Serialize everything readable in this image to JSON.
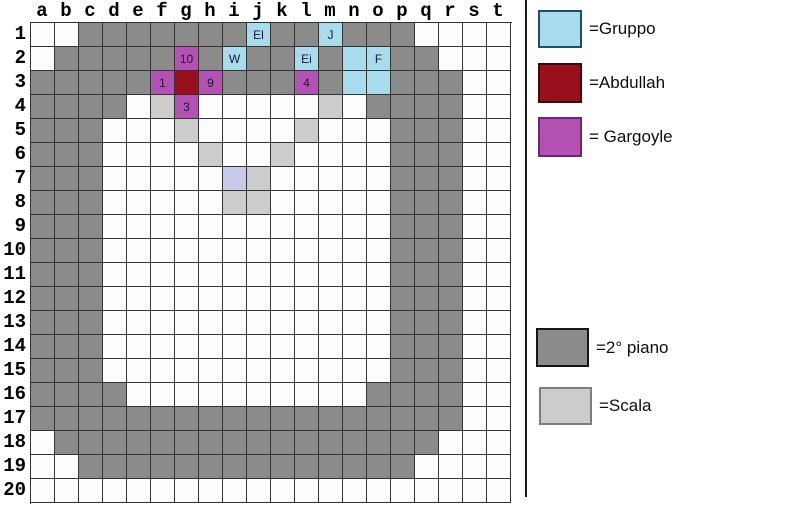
{
  "colors": {
    "G": "#8b8b8b",
    "S": "#cccccc",
    "C": "#a8dcec",
    "P": "#b452b4",
    "R": "#9a0f1e",
    "L": "#c9c9ec",
    "W": "#fdfdfd"
  },
  "grid": {
    "columns": [
      "a",
      "b",
      "c",
      "d",
      "e",
      "f",
      "g",
      "h",
      "i",
      "j",
      "k",
      "l",
      "m",
      "n",
      "o",
      "p",
      "q",
      "r",
      "s",
      "t"
    ],
    "rows": [
      "1",
      "2",
      "3",
      "4",
      "5",
      "6",
      "7",
      "8",
      "9",
      "10",
      "11",
      "12",
      "13",
      "14",
      "15",
      "16",
      "17",
      "18",
      "19",
      "20"
    ],
    "cells": [
      "WWGGGGGGGCGGCGGGWWWW",
      "WGGGGGPGCGGCGCCGGWWW",
      "GGGGGPRPGGGPGCCGGGWW",
      "GGGGWSPWWWWWSWGGGGWW",
      "GGGWWWSWWWWSWWWGGGWW",
      "GGGWWWWSWWSWWWWGGGWW",
      "GGGWWWWWLSWWWWWGGGWW",
      "GGGWWWWWSSWWWWWGGGWW",
      "GGGWWWWWWWWWWWWGGGWW",
      "GGGWWWWWWWWWWWWGGGWW",
      "GGGWWWWWWWWWWWWGGGWW",
      "GGGWWWWWWWWWWWWGGGWW",
      "GGGWWWWWWWWWWWWGGGWW",
      "GGGWWWWWWWWWWWWGGGWW",
      "GGGWWWWWWWWWWWWGGGWW",
      "GGGGWWWWWWWWWWGGGGWW",
      "GGGGGGGGGGGGGGGGGGWW",
      "WGGGGGGGGGGGGGGGGWWW",
      "WWGGGGGGGGGGGGGGWWWW",
      "WWWWWWWWWWWWWWWWWWWW"
    ],
    "labels": [
      {
        "cell": "j1",
        "text": "El"
      },
      {
        "cell": "m1",
        "text": "J"
      },
      {
        "cell": "g2",
        "text": "10"
      },
      {
        "cell": "i2",
        "text": "W"
      },
      {
        "cell": "l2",
        "text": "Ei"
      },
      {
        "cell": "o2",
        "text": "F"
      },
      {
        "cell": "f3",
        "text": "1"
      },
      {
        "cell": "h3",
        "text": "9"
      },
      {
        "cell": "l3",
        "text": "4"
      },
      {
        "cell": "g4",
        "text": "3"
      }
    ]
  },
  "legend": {
    "entries": [
      {
        "key": "C",
        "label": "=Gruppo"
      },
      {
        "key": "R",
        "label": "=Abdullah"
      },
      {
        "key": "P",
        "label": "= Gargoyle"
      },
      {
        "key": "G",
        "label": "=2° piano"
      },
      {
        "key": "S",
        "label": "=Scala"
      }
    ]
  }
}
